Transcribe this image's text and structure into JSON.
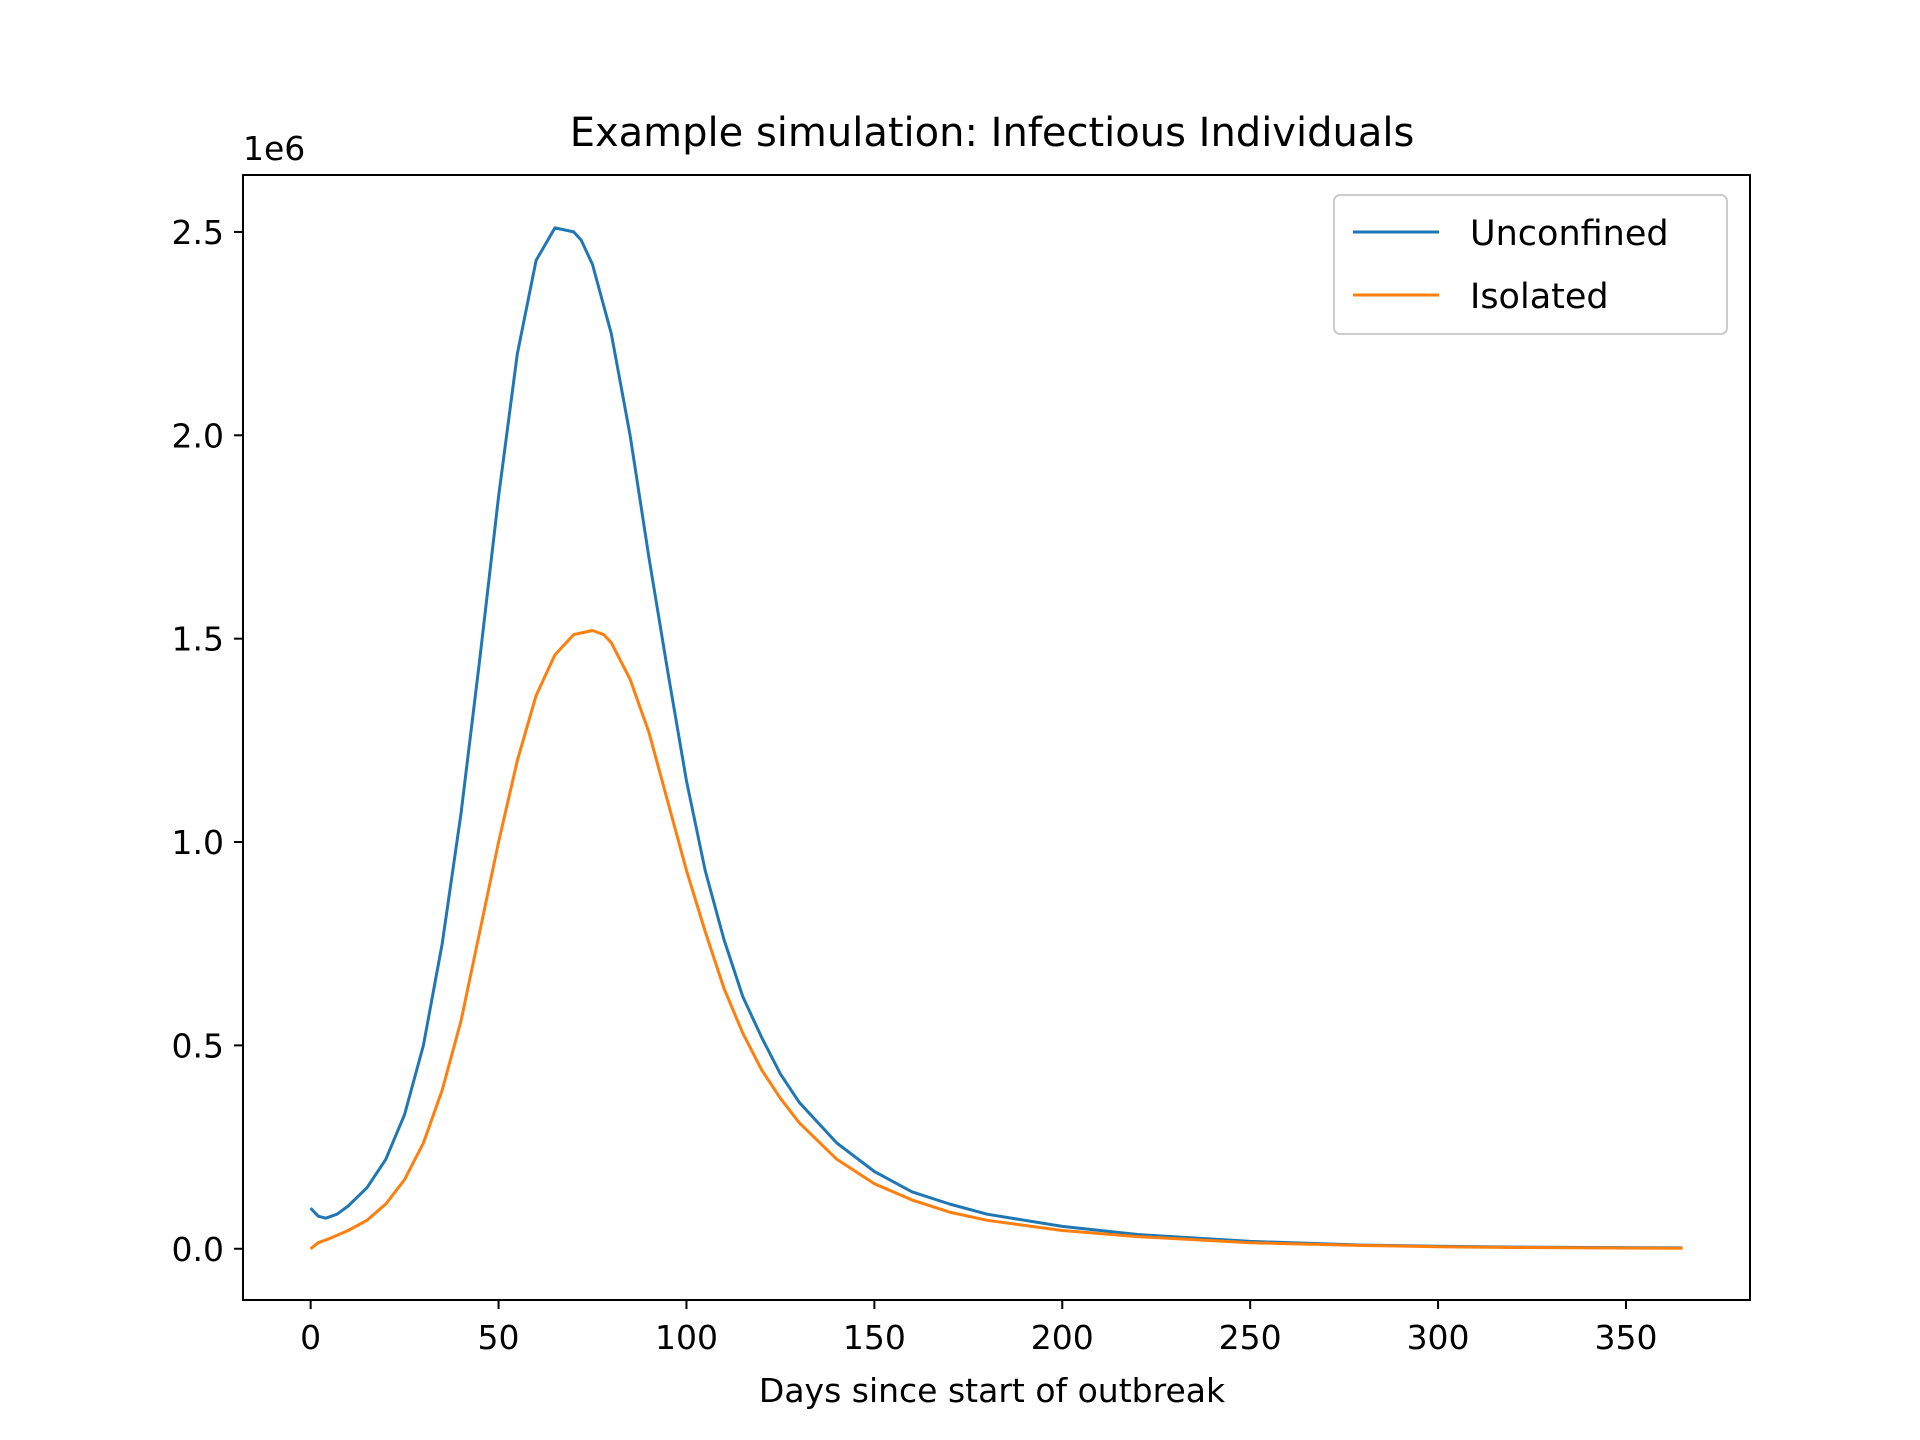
{
  "chart_data": {
    "type": "line",
    "title": "Example simulation: Infectious Individuals",
    "xlabel": "Days since start of outbreak",
    "ylabel": "",
    "y_offset_label": "1e6",
    "xlim": [
      -18,
      383
    ],
    "ylim": [
      -0.126,
      2.64
    ],
    "x_ticks": [
      0,
      50,
      100,
      150,
      200,
      250,
      300,
      350
    ],
    "x_tick_labels": [
      "0",
      "50",
      "100",
      "150",
      "200",
      "250",
      "300",
      "350"
    ],
    "y_ticks": [
      0.0,
      0.5,
      1.0,
      1.5,
      2.0,
      2.5
    ],
    "y_tick_labels": [
      "0.0",
      "0.5",
      "1.0",
      "1.5",
      "2.0",
      "2.5"
    ],
    "grid": false,
    "legend_position": "top-right",
    "series": [
      {
        "name": "Unconfined",
        "color": "#1f77b4",
        "x": [
          0,
          2,
          4,
          7,
          10,
          15,
          20,
          25,
          30,
          35,
          40,
          45,
          50,
          55,
          60,
          65,
          70,
          72,
          75,
          80,
          85,
          90,
          95,
          100,
          105,
          110,
          115,
          120,
          125,
          130,
          140,
          150,
          160,
          170,
          180,
          200,
          220,
          250,
          280,
          300,
          320,
          340,
          365
        ],
        "y": [
          0.1,
          0.08,
          0.075,
          0.085,
          0.105,
          0.15,
          0.22,
          0.33,
          0.5,
          0.75,
          1.07,
          1.45,
          1.85,
          2.2,
          2.43,
          2.51,
          2.5,
          2.48,
          2.42,
          2.25,
          2.0,
          1.7,
          1.42,
          1.15,
          0.93,
          0.76,
          0.62,
          0.52,
          0.43,
          0.36,
          0.26,
          0.19,
          0.14,
          0.11,
          0.085,
          0.055,
          0.035,
          0.018,
          0.009,
          0.006,
          0.004,
          0.003,
          0.002
        ]
      },
      {
        "name": "Isolated",
        "color": "#ff7f0e",
        "x": [
          0,
          2,
          5,
          10,
          15,
          20,
          25,
          30,
          35,
          40,
          45,
          50,
          55,
          60,
          65,
          70,
          75,
          78,
          80,
          85,
          90,
          95,
          100,
          105,
          110,
          115,
          120,
          125,
          130,
          140,
          150,
          160,
          170,
          180,
          200,
          220,
          250,
          280,
          300,
          320,
          340,
          365
        ],
        "y": [
          0.0,
          0.015,
          0.025,
          0.045,
          0.07,
          0.11,
          0.17,
          0.26,
          0.39,
          0.56,
          0.78,
          1.0,
          1.2,
          1.36,
          1.46,
          1.51,
          1.52,
          1.51,
          1.49,
          1.4,
          1.27,
          1.1,
          0.93,
          0.78,
          0.64,
          0.53,
          0.44,
          0.37,
          0.31,
          0.22,
          0.16,
          0.12,
          0.09,
          0.07,
          0.045,
          0.03,
          0.015,
          0.008,
          0.005,
          0.003,
          0.002,
          0.001
        ]
      }
    ]
  }
}
